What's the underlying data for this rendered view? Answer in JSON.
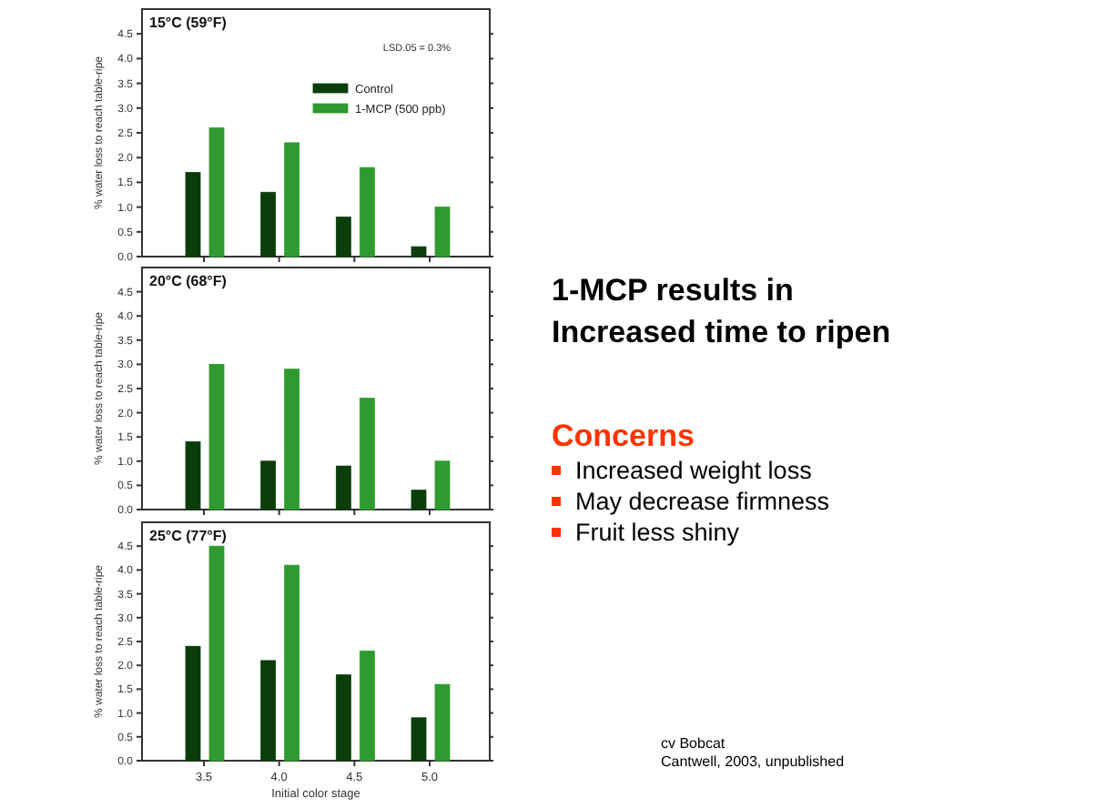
{
  "chart_data": [
    {
      "type": "bar",
      "title": "15°C (59°F)",
      "ylabel": "% water loss to reach table-ripe",
      "categories": [
        "3.5",
        "4.0",
        "4.5",
        "5.0"
      ],
      "ylim": [
        0,
        5
      ],
      "yticks": [
        {
          "value": 0,
          "label": "0.0"
        },
        {
          "value": 0.5,
          "label": "0.5"
        },
        {
          "value": 1,
          "label": "1.0"
        },
        {
          "value": 1.5,
          "label": "1.5"
        },
        {
          "value": 2,
          "label": "2.0"
        },
        {
          "value": 2.5,
          "label": "2.5"
        },
        {
          "value": 3,
          "label": "3.0"
        },
        {
          "value": 3.5,
          "label": "3.5"
        },
        {
          "value": 4,
          "label": "4.0"
        },
        {
          "value": 4.5,
          "label": "4.5"
        }
      ],
      "tick_labels": "y",
      "legend": "top right",
      "annotations": [
        "LSD.05 = 0.3%"
      ],
      "series": [
        {
          "name": "Control",
          "color": "#0b3d0b",
          "values": [
            1.7,
            1.3,
            0.8,
            0.2
          ]
        },
        {
          "name": "1-MCP (500 ppb)",
          "color": "#2f9a2f",
          "values": [
            2.6,
            2.3,
            1.8,
            1.0
          ]
        }
      ]
    },
    {
      "type": "bar",
      "title": "20°C (68°F)",
      "ylabel": "% water loss to reach table-ripe",
      "categories": [
        "3.5",
        "4.0",
        "4.5",
        "5.0"
      ],
      "ylim": [
        0,
        5
      ],
      "yticks": [
        {
          "value": 0,
          "label": "0.0"
        },
        {
          "value": 0.5,
          "label": "0.5"
        },
        {
          "value": 1,
          "label": "1.0"
        },
        {
          "value": 1.5,
          "label": "1.5"
        },
        {
          "value": 2,
          "label": "2.0"
        },
        {
          "value": 2.5,
          "label": "2.5"
        },
        {
          "value": 3,
          "label": "3.0"
        },
        {
          "value": 3.5,
          "label": "3.5"
        },
        {
          "value": 4,
          "label": "4.0"
        },
        {
          "value": 4.5,
          "label": "4.5"
        }
      ],
      "tick_labels": "y",
      "series": [
        {
          "color": "#0b3d0b",
          "values": [
            1.4,
            1.0,
            0.9,
            0.4
          ]
        },
        {
          "color": "#2f9a2f",
          "values": [
            3.0,
            2.9,
            2.3,
            1.0
          ]
        }
      ]
    },
    {
      "type": "bar",
      "title": "25°C (77°F)",
      "ylabel": "% water loss to reach table-ripe",
      "xlabel": "Initial color stage",
      "categories": [
        "3.5",
        "4.0",
        "4.5",
        "5.0"
      ],
      "ylim": [
        0,
        5
      ],
      "yticks": [
        {
          "value": 0,
          "label": "0.0"
        },
        {
          "value": 0.5,
          "label": "0.5"
        },
        {
          "value": 1,
          "label": "1.0"
        },
        {
          "value": 1.5,
          "label": "1.5"
        },
        {
          "value": 2,
          "label": "2.0"
        },
        {
          "value": 2.5,
          "label": "2.5"
        },
        {
          "value": 3,
          "label": "3.0"
        },
        {
          "value": 3.5,
          "label": "3.5"
        },
        {
          "value": 4,
          "label": "4.0"
        },
        {
          "value": 4.5,
          "label": "4.5"
        }
      ],
      "series": [
        {
          "color": "#0b3d0b",
          "values": [
            2.4,
            2.1,
            1.8,
            0.9
          ]
        },
        {
          "color": "#2f9a2f",
          "values": [
            4.5,
            4.1,
            2.3,
            1.6
          ]
        }
      ]
    },
    {
      "type": "other",
      "title": "1-MCP results in Increased time to ripen",
      "subtitle": "Concerns",
      "annotations": [
        "Increased weight loss",
        "May decrease firmness",
        "Fruit less shiny",
        "cv Bobcat",
        "Cantwell, 2003, unpublished"
      ]
    }
  ]
}
